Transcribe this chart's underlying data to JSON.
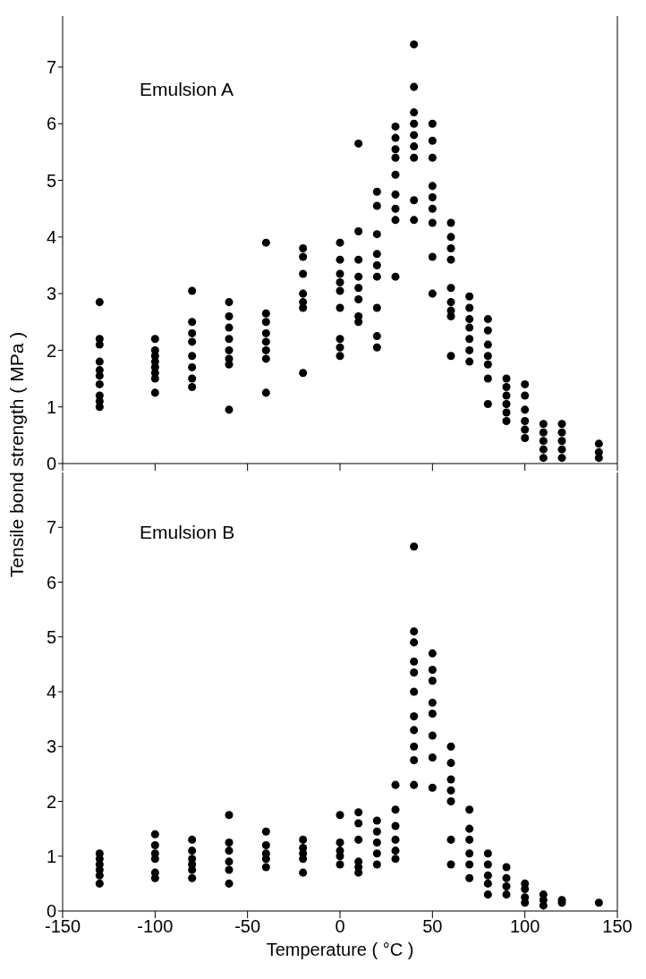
{
  "chart_data": [
    {
      "type": "scatter",
      "ylabel": "Tensile bond strength ( MPa )",
      "annotations": [
        "Emulsion A"
      ],
      "xlim": [
        -150,
        150
      ],
      "xticks": [
        -150,
        -100,
        -50,
        0,
        50,
        100,
        150
      ],
      "ylim": [
        0,
        7.9
      ],
      "yticks": [
        0,
        1,
        2,
        3,
        4,
        5,
        6,
        7
      ],
      "tick_labels": "y",
      "marker": "circle",
      "grid": false,
      "series": [
        {
          "color": "#000000",
          "x": [
            -130,
            -130,
            -130,
            -130,
            -130,
            -130,
            -130,
            -130,
            -130,
            -130,
            -100,
            -100,
            -100,
            -100,
            -100,
            -100,
            -100,
            -100,
            -80,
            -80,
            -80,
            -80,
            -80,
            -80,
            -80,
            -80,
            -60,
            -60,
            -60,
            -60,
            -60,
            -60,
            -60,
            -60,
            -40,
            -40,
            -40,
            -40,
            -40,
            -40,
            -40,
            -40,
            -20,
            -20,
            -20,
            -20,
            -20,
            -20,
            -20,
            0,
            0,
            0,
            0,
            0,
            0,
            0,
            0,
            0,
            10,
            10,
            10,
            10,
            10,
            10,
            10,
            10,
            20,
            20,
            20,
            20,
            20,
            20,
            20,
            20,
            20,
            30,
            30,
            30,
            30,
            30,
            30,
            30,
            30,
            30,
            40,
            40,
            40,
            40,
            40,
            40,
            40,
            40,
            40,
            50,
            50,
            50,
            50,
            50,
            50,
            50,
            50,
            50,
            60,
            60,
            60,
            60,
            60,
            60,
            60,
            60,
            60,
            70,
            70,
            70,
            70,
            70,
            70,
            70,
            80,
            80,
            80,
            80,
            80,
            80,
            80,
            90,
            90,
            90,
            90,
            90,
            90,
            100,
            100,
            100,
            100,
            100,
            100,
            110,
            110,
            110,
            110,
            110,
            120,
            120,
            120,
            120,
            120,
            140,
            140,
            140
          ],
          "values": [
            2.85,
            2.2,
            2.1,
            1.8,
            1.65,
            1.55,
            1.4,
            1.2,
            1.1,
            1.0,
            2.2,
            2.0,
            1.9,
            1.8,
            1.7,
            1.6,
            1.5,
            1.25,
            3.05,
            2.5,
            2.3,
            2.15,
            1.9,
            1.7,
            1.5,
            1.35,
            2.85,
            2.6,
            2.4,
            2.2,
            2.0,
            1.85,
            1.75,
            0.95,
            3.9,
            2.65,
            2.5,
            2.3,
            2.15,
            2.0,
            1.85,
            1.25,
            3.8,
            3.65,
            3.35,
            3.0,
            2.85,
            2.75,
            1.6,
            3.9,
            3.6,
            3.35,
            3.2,
            3.05,
            2.75,
            2.2,
            2.05,
            1.9,
            5.65,
            4.1,
            3.6,
            3.3,
            3.1,
            2.9,
            2.6,
            2.5,
            4.8,
            4.55,
            4.05,
            3.7,
            3.5,
            3.3,
            2.75,
            2.25,
            2.05,
            5.95,
            5.75,
            5.55,
            5.4,
            5.1,
            4.75,
            4.5,
            4.3,
            3.3,
            7.4,
            6.65,
            6.2,
            6.0,
            5.8,
            5.6,
            5.4,
            4.65,
            4.3,
            6.0,
            5.7,
            5.4,
            4.9,
            4.7,
            4.5,
            4.25,
            3.65,
            3.0,
            4.25,
            4.0,
            3.8,
            3.6,
            3.1,
            2.85,
            2.7,
            2.6,
            1.9,
            2.95,
            2.75,
            2.55,
            2.4,
            2.2,
            2.0,
            1.8,
            2.55,
            2.35,
            2.1,
            1.9,
            1.75,
            1.5,
            1.05,
            1.5,
            1.35,
            1.2,
            1.05,
            0.9,
            0.75,
            1.4,
            1.2,
            0.95,
            0.75,
            0.6,
            0.45,
            0.7,
            0.55,
            0.4,
            0.25,
            0.1,
            0.7,
            0.55,
            0.4,
            0.25,
            0.1,
            0.35,
            0.2,
            0.1
          ]
        }
      ]
    },
    {
      "type": "scatter",
      "xlabel": "Temperature ( °C )",
      "annotations": [
        "Emulsion B"
      ],
      "xlim": [
        -150,
        150
      ],
      "xticks": [
        -150,
        -100,
        -50,
        0,
        50,
        100,
        150
      ],
      "ylim": [
        0,
        8
      ],
      "yticks": [
        0,
        1,
        2,
        3,
        4,
        5,
        6,
        7
      ],
      "marker": "circle",
      "grid": false,
      "series": [
        {
          "color": "#000000",
          "x": [
            -130,
            -130,
            -130,
            -130,
            -130,
            -130,
            -100,
            -100,
            -100,
            -100,
            -100,
            -100,
            -80,
            -80,
            -80,
            -80,
            -80,
            -80,
            -60,
            -60,
            -60,
            -60,
            -60,
            -60,
            -40,
            -40,
            -40,
            -40,
            -40,
            -20,
            -20,
            -20,
            -20,
            -20,
            0,
            0,
            0,
            0,
            0,
            10,
            10,
            10,
            10,
            10,
            10,
            20,
            20,
            20,
            20,
            20,
            30,
            30,
            30,
            30,
            30,
            30,
            40,
            40,
            40,
            40,
            40,
            40,
            40,
            40,
            40,
            40,
            40,
            50,
            50,
            50,
            50,
            50,
            50,
            50,
            50,
            60,
            60,
            60,
            60,
            60,
            60,
            60,
            70,
            70,
            70,
            70,
            70,
            70,
            80,
            80,
            80,
            80,
            80,
            90,
            90,
            90,
            90,
            100,
            100,
            100,
            100,
            110,
            110,
            110,
            120,
            120,
            140
          ],
          "values": [
            1.05,
            0.95,
            0.85,
            0.75,
            0.65,
            0.5,
            1.4,
            1.2,
            1.05,
            0.95,
            0.7,
            0.6,
            1.3,
            1.1,
            0.95,
            0.85,
            0.75,
            0.6,
            1.75,
            1.25,
            1.1,
            0.9,
            0.75,
            0.5,
            1.45,
            1.2,
            1.05,
            0.95,
            0.8,
            1.3,
            1.15,
            1.05,
            0.95,
            0.7,
            1.75,
            1.25,
            1.1,
            1.0,
            0.85,
            1.8,
            1.6,
            1.3,
            0.9,
            0.8,
            0.7,
            1.65,
            1.45,
            1.25,
            1.05,
            0.85,
            2.3,
            1.85,
            1.55,
            1.3,
            1.1,
            0.95,
            6.65,
            5.1,
            4.9,
            4.55,
            4.35,
            4.0,
            3.55,
            3.3,
            3.0,
            2.75,
            2.3,
            4.7,
            4.4,
            4.2,
            3.8,
            3.6,
            3.2,
            2.8,
            2.25,
            3.0,
            2.7,
            2.4,
            2.2,
            2.0,
            1.3,
            0.85,
            1.85,
            1.5,
            1.3,
            1.05,
            0.85,
            0.6,
            1.05,
            0.85,
            0.65,
            0.5,
            0.3,
            0.8,
            0.6,
            0.45,
            0.3,
            0.5,
            0.4,
            0.25,
            0.15,
            0.3,
            0.2,
            0.1,
            0.2,
            0.15,
            0.15
          ]
        }
      ]
    }
  ]
}
